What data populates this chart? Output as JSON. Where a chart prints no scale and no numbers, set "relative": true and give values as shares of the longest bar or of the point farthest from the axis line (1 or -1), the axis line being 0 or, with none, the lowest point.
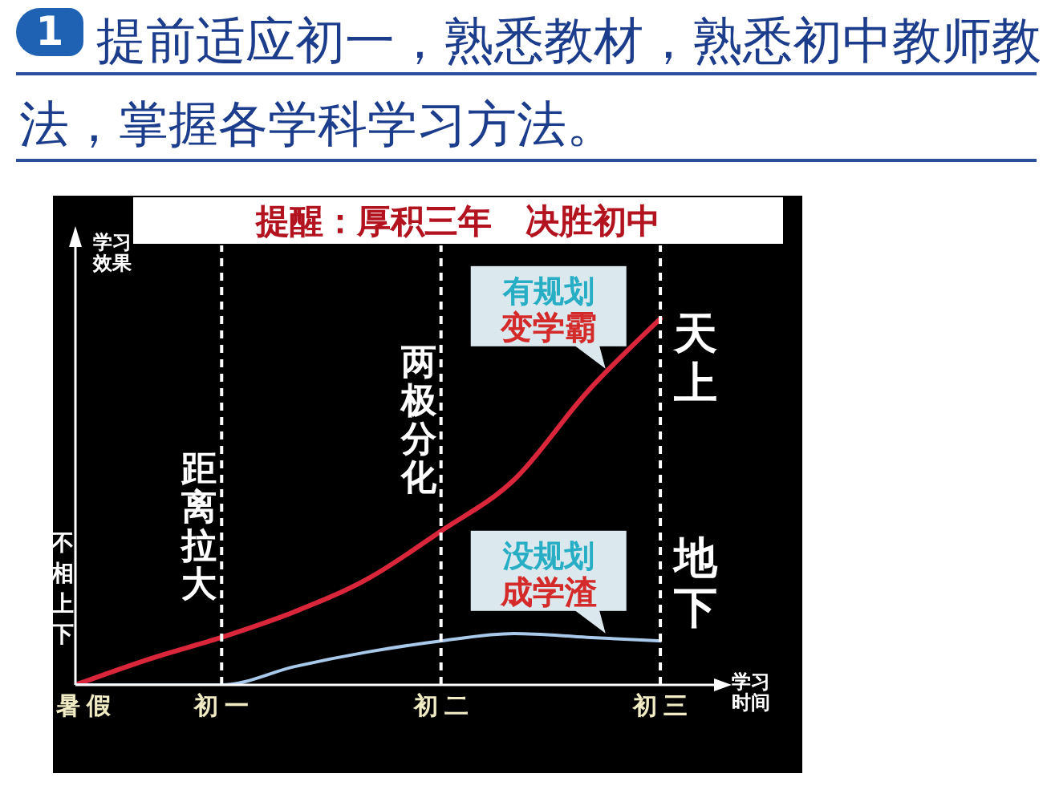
{
  "chart_data": {
    "type": "line",
    "title": "提前适应初一，熟悉教材，熟悉初中教师教法，掌握各学科学习方法。",
    "subtitle": "提醒：厚积三年 决胜初中",
    "xlabel": "学习时间",
    "ylabel": "学习效果",
    "categories": [
      "暑假",
      null,
      "初一",
      null,
      null,
      "初二",
      null,
      null,
      "初三"
    ],
    "relative": true,
    "marker": "none",
    "series": [
      {
        "name": "有规划变学霸",
        "color": "#d9263b",
        "values": [
          0,
          0.07,
          0.13,
          0.2,
          0.29,
          0.42,
          0.56,
          0.8,
          1
        ]
      },
      {
        "name": "没规划成学渣",
        "color": "#a9c9ea",
        "values": [
          0,
          0,
          0,
          0.05,
          0.09,
          0.12,
          0.14,
          0.13,
          0.12
        ]
      }
    ],
    "ref_lines": [
      {
        "axis": "x",
        "value": "初一",
        "label": "距离拉大",
        "color": "#ffffff",
        "line_style": "dashed"
      },
      {
        "axis": "x",
        "value": "初二",
        "label": "两极分化",
        "color": "#ffffff",
        "line_style": "dashed"
      },
      {
        "axis": "x",
        "value": "初三",
        "color": "#ffffff",
        "line_style": "dashed"
      }
    ],
    "annotations": [
      "1",
      "不相上下",
      "天上",
      "地下"
    ]
  }
}
